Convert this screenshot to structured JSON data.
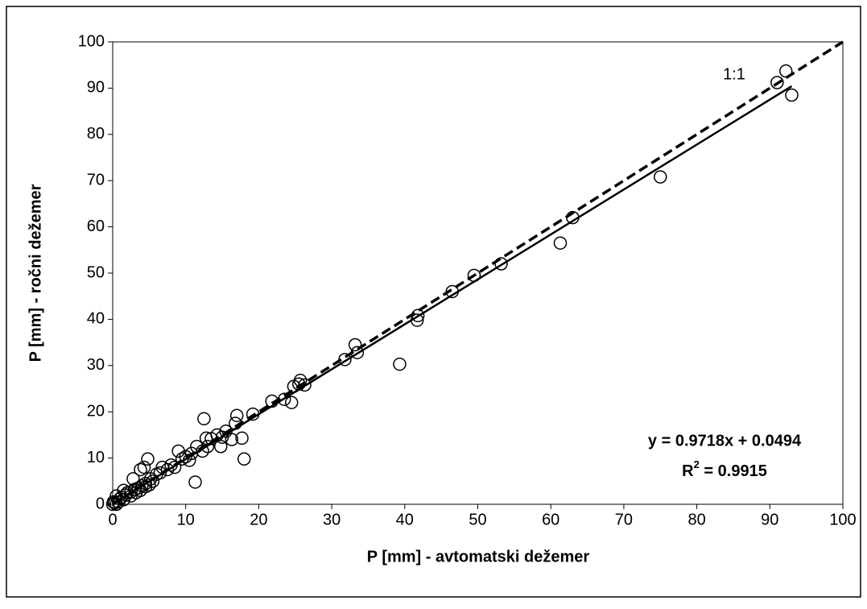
{
  "chart_data": {
    "type": "scatter",
    "x_label": "P [mm] - avtomatski dežemer",
    "y_label": "P [mm] - ročni dežemer",
    "reference_label": "1:1",
    "equation_label": "y = 0.9718x + 0.0494",
    "r2_label": {
      "prefix": "R",
      "sup": "2",
      "suffix": " = 0.9915"
    },
    "trendline": {
      "slope": 0.9718,
      "intercept": 0.0494,
      "x_range": [
        0,
        93
      ]
    },
    "xlim": [
      0,
      100
    ],
    "ylim": [
      0,
      100
    ],
    "xticks": [
      0,
      10,
      20,
      30,
      40,
      50,
      60,
      70,
      80,
      90,
      100
    ],
    "yticks": [
      0,
      10,
      20,
      30,
      40,
      50,
      60,
      70,
      80,
      90,
      100
    ],
    "grid": false,
    "color": "#000000",
    "x": [
      92.2,
      91,
      93,
      75,
      63,
      61.3,
      53.2,
      49.5,
      46.5,
      41.8,
      41.7,
      39.3,
      33.5,
      33.2,
      31.8,
      26.3,
      25.7,
      25.5,
      24.8,
      24.5,
      23.5,
      21.8,
      19.2,
      18,
      17.7,
      17,
      16.8,
      16.3,
      15.5,
      15,
      14.8,
      14.3,
      13.5,
      13,
      12.8,
      12.5,
      12.3,
      11.5,
      11.3,
      10.8,
      10.5,
      10,
      9.5,
      9,
      8.5,
      8,
      7.5,
      6.8,
      6.5,
      6,
      5.5,
      5.2,
      4.8,
      4.5,
      4.3,
      4,
      3.8,
      3.5,
      3,
      2.8,
      2.5,
      2,
      1.8,
      1.5,
      1.2,
      1,
      0.8,
      0.5,
      0.3,
      0,
      0.1,
      0.5,
      1.5,
      2.5,
      3.2,
      3.8,
      4.5,
      5
    ],
    "y": [
      93.7,
      91.2,
      88.5,
      70.8,
      62,
      56.5,
      52,
      49.5,
      46,
      40.8,
      39.8,
      30.3,
      32.8,
      34.5,
      31.3,
      25.8,
      26.8,
      26,
      25.5,
      22,
      22.7,
      22.3,
      19.5,
      9.8,
      14.3,
      19.2,
      17.5,
      14,
      15.8,
      14.5,
      12.5,
      15,
      14.2,
      12.5,
      14.3,
      18.5,
      11.5,
      12.5,
      4.8,
      11,
      9.5,
      10.3,
      9.8,
      11.5,
      8,
      8.5,
      7.5,
      8,
      6.8,
      6.5,
      5,
      5.5,
      9.8,
      4.5,
      8,
      4,
      7.5,
      3.5,
      3.2,
      5.5,
      2.7,
      2.5,
      2,
      3,
      1.5,
      1.2,
      0.5,
      1.8,
      0.3,
      0,
      0.5,
      0,
      1.0,
      1.8,
      2.5,
      3,
      3.8,
      4.2
    ]
  }
}
